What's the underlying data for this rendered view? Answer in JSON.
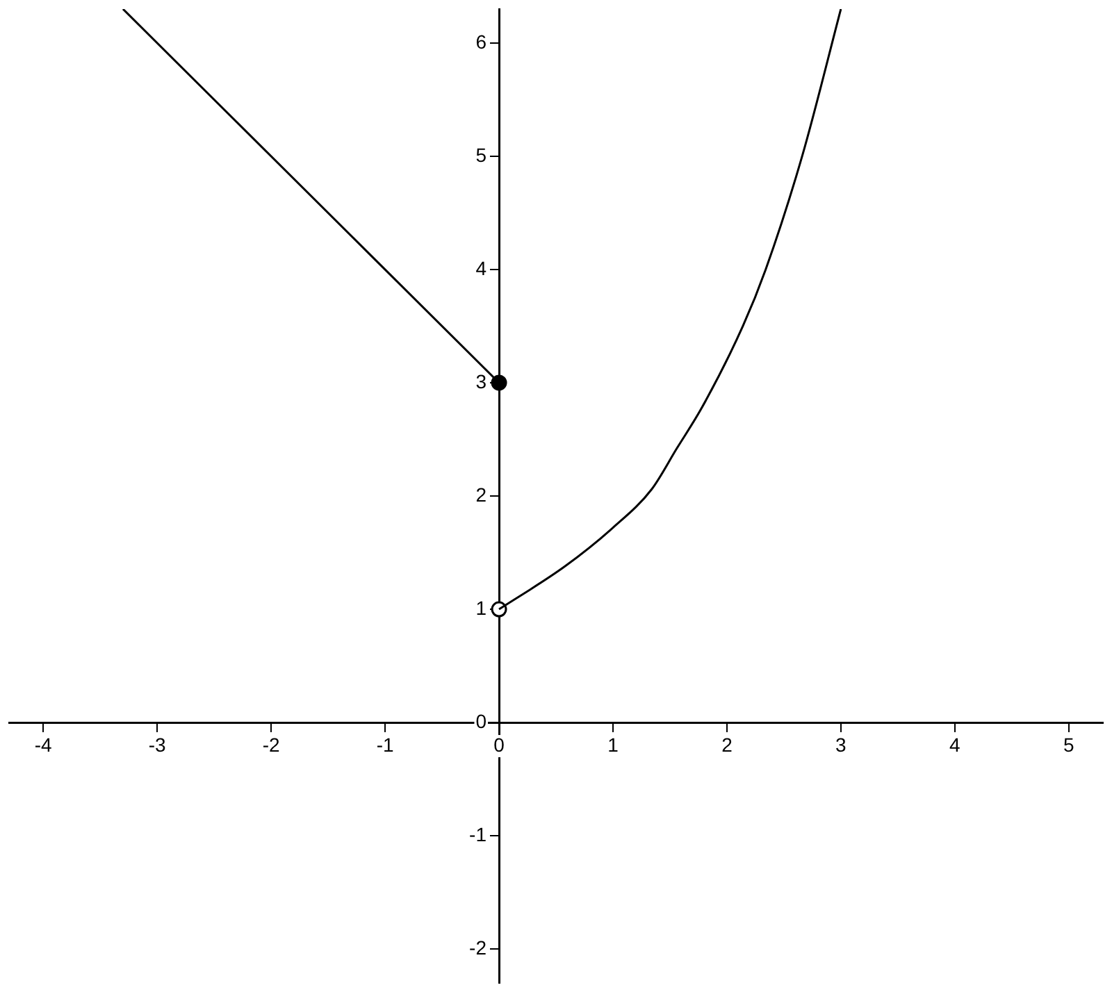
{
  "chart_data": {
    "type": "line",
    "xlim": [
      -4.3,
      5.3
    ],
    "ylim": [
      -2.3,
      6.3
    ],
    "xticks": [
      -4,
      -3,
      -2,
      -1,
      0,
      1,
      2,
      3,
      4,
      5
    ],
    "yticks": [
      -2,
      -1,
      0,
      1,
      2,
      3,
      4,
      5,
      6
    ],
    "grid": false,
    "legend": false,
    "marker": "none",
    "series": [
      {
        "type": "line",
        "color": "#000000",
        "x": [
          -3.3,
          0
        ],
        "values": [
          6.3,
          3
        ]
      },
      {
        "type": "line",
        "color": "#000000",
        "x": [
          0,
          0.58,
          1.0,
          1.34,
          1.56,
          1.78,
          2.14,
          2.34,
          2.66,
          3.0
        ],
        "values": [
          1,
          1.38,
          1.72,
          2.06,
          2.42,
          2.78,
          3.5,
          4,
          5,
          6.3
        ]
      },
      {
        "type": "scatter",
        "marker": "circle",
        "color": "#000000",
        "x": [
          0
        ],
        "values": [
          3
        ]
      },
      {
        "type": "scatter",
        "marker": "circle",
        "color": "#ffffff",
        "x": [
          0
        ],
        "values": [
          1
        ]
      }
    ]
  }
}
